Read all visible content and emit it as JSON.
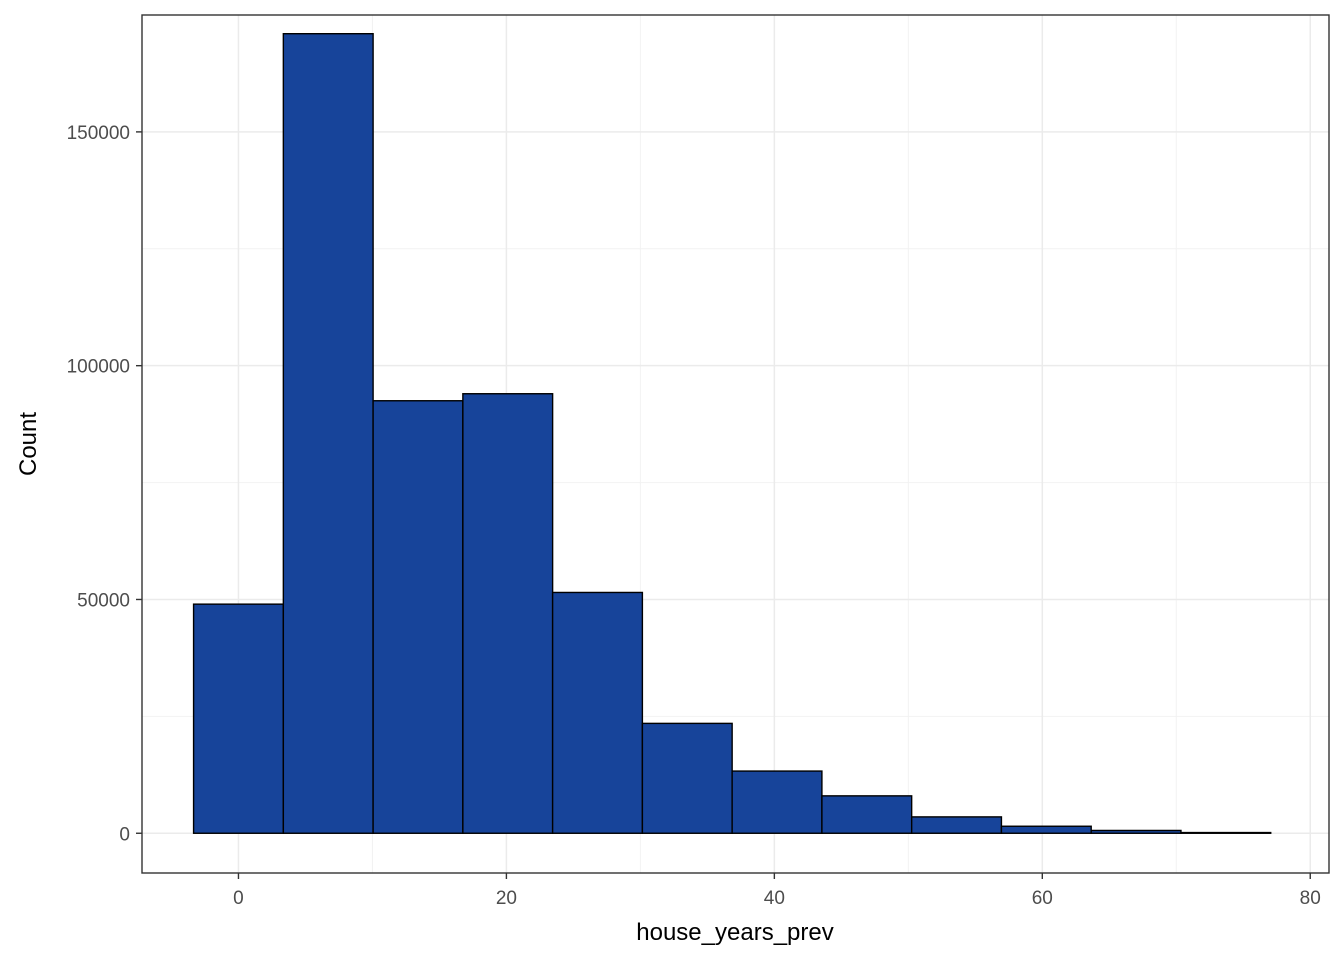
{
  "chart_data": {
    "type": "bar",
    "subtype": "histogram",
    "xlabel": "house_years_prev",
    "ylabel": "Count",
    "xlim": [
      -7.2,
      81.4
    ],
    "ylim": [
      -8500,
      175000
    ],
    "x_ticks": [
      0,
      20,
      40,
      60,
      80
    ],
    "y_ticks": [
      0,
      50000,
      100000,
      150000
    ],
    "grid": true,
    "bins": [
      {
        "x0": -3.35,
        "x1": 3.35,
        "count": 49000
      },
      {
        "x0": 3.35,
        "x1": 10.05,
        "count": 171000
      },
      {
        "x0": 10.05,
        "x1": 16.75,
        "count": 92500
      },
      {
        "x0": 16.75,
        "x1": 23.45,
        "count": 94000
      },
      {
        "x0": 23.45,
        "x1": 30.15,
        "count": 51500
      },
      {
        "x0": 30.15,
        "x1": 36.85,
        "count": 23500
      },
      {
        "x0": 36.85,
        "x1": 43.55,
        "count": 13300
      },
      {
        "x0": 43.55,
        "x1": 50.25,
        "count": 8000
      },
      {
        "x0": 50.25,
        "x1": 56.95,
        "count": 3500
      },
      {
        "x0": 56.95,
        "x1": 63.65,
        "count": 1500
      },
      {
        "x0": 63.65,
        "x1": 70.35,
        "count": 600
      },
      {
        "x0": 70.35,
        "x1": 77.05,
        "count": 150
      }
    ],
    "colors": {
      "bar_fill": "#17449a",
      "bar_stroke": "#000000",
      "grid_major": "#ebebeb",
      "grid_minor": "#f2f2f2",
      "panel_border": "#333333",
      "tick_text": "#4d4d4d"
    }
  }
}
